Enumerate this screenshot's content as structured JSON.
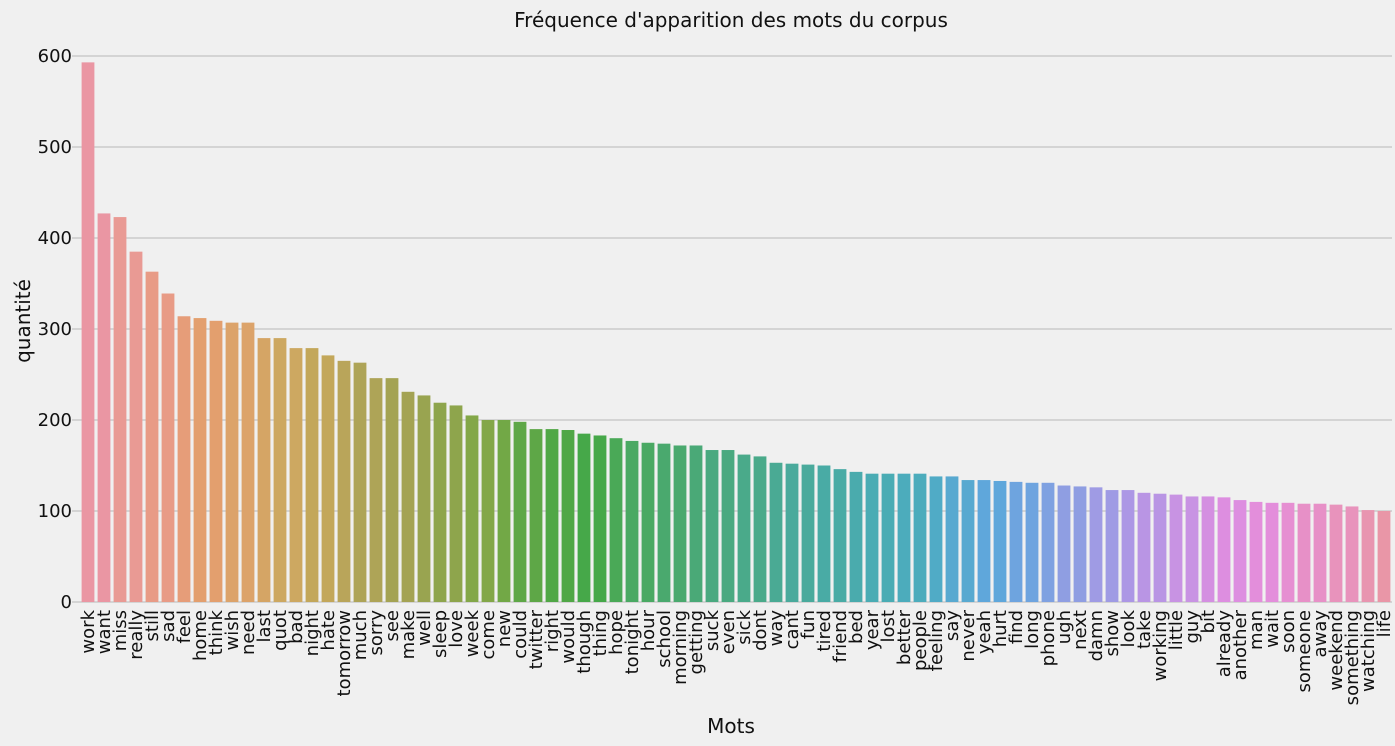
{
  "chart_data": {
    "type": "bar",
    "title": "Fréquence d'apparition des mots du corpus",
    "xlabel": "Mots",
    "ylabel": "quantité",
    "ylim": [
      0,
      600
    ],
    "yticks": [
      "0",
      "100",
      "200",
      "300",
      "400",
      "500",
      "600"
    ],
    "grid": "horizontal",
    "categories": [
      "work",
      "want",
      "miss",
      "really",
      "still",
      "sad",
      "feel",
      "home",
      "think",
      "wish",
      "need",
      "last",
      "quot",
      "bad",
      "night",
      "hate",
      "tomorrow",
      "much",
      "sorry",
      "see",
      "make",
      "well",
      "sleep",
      "love",
      "week",
      "come",
      "new",
      "could",
      "twitter",
      "right",
      "would",
      "though",
      "thing",
      "hope",
      "tonight",
      "hour",
      "school",
      "morning",
      "getting",
      "suck",
      "even",
      "sick",
      "dont",
      "way",
      "cant",
      "fun",
      "tired",
      "friend",
      "bed",
      "year",
      "lost",
      "better",
      "people",
      "feeling",
      "say",
      "never",
      "yeah",
      "hurt",
      "find",
      "long",
      "phone",
      "ugh",
      "next",
      "damn",
      "show",
      "look",
      "take",
      "working",
      "little",
      "guy",
      "bit",
      "already",
      "another",
      "man",
      "wait",
      "soon",
      "someone",
      "away",
      "weekend",
      "something",
      "watching",
      "life"
    ],
    "values": [
      593,
      427,
      423,
      385,
      363,
      339,
      314,
      312,
      309,
      307,
      307,
      290,
      290,
      279,
      279,
      271,
      265,
      263,
      246,
      246,
      231,
      227,
      219,
      216,
      205,
      200,
      200,
      198,
      190,
      190,
      189,
      185,
      183,
      180,
      177,
      175,
      174,
      172,
      172,
      167,
      167,
      162,
      160,
      153,
      152,
      151,
      150,
      146,
      143,
      141,
      141,
      141,
      141,
      138,
      138,
      134,
      134,
      133,
      132,
      131,
      131,
      128,
      127,
      126,
      123,
      123,
      120,
      119,
      118,
      116,
      116,
      115,
      112,
      110,
      109,
      109,
      108,
      108,
      107,
      105,
      101,
      100
    ],
    "colors": [
      "#ea96a3",
      "#e99a94",
      "#e89b86",
      "#e69d79",
      "#e39f6e",
      "#dca36a",
      "#d5a565",
      "#cda861",
      "#c3a75a",
      "#b9a55a",
      "#aea457",
      "#a4a353",
      "#99a450",
      "#8ea54c",
      "#83a748",
      "#72a846",
      "#5ea747",
      "#50a746",
      "#46a849",
      "#4aa957",
      "#4aa963",
      "#4aa96e",
      "#4aa977",
      "#4aa980",
      "#4aaa8a",
      "#4aaa94",
      "#4aaa9c",
      "#49aba5",
      "#4aabad",
      "#4aacb4",
      "#4cacbc",
      "#50abc6",
      "#58a9d0",
      "#5fa7db",
      "#6ea4df",
      "#7fa1e1",
      "#8f9ee2",
      "#9f9be4",
      "#ac97e5",
      "#b995e4",
      "#c893e3",
      "#d48fe1",
      "#dd8ee0",
      "#e38edb",
      "#e68fd2",
      "#e790c7",
      "#e893bc",
      "#e895b0",
      "#e996a7"
    ]
  }
}
